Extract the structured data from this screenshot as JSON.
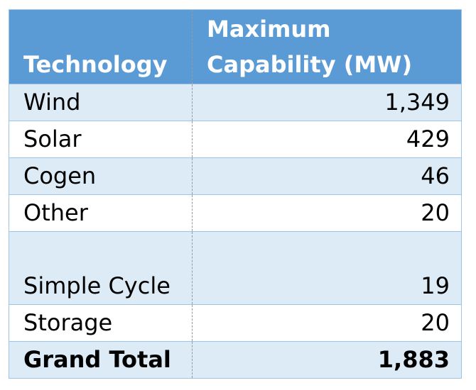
{
  "headers": {
    "technology": "Technology",
    "capability": "Maximum Capability (MW)"
  },
  "rows": [
    {
      "technology": "Wind",
      "capability": "1,349"
    },
    {
      "technology": "Solar",
      "capability": "429"
    },
    {
      "technology": "Cogen",
      "capability": "46"
    },
    {
      "technology": "Other",
      "capability": "20"
    },
    {
      "technology": "Simple Cycle",
      "capability": "19"
    },
    {
      "technology": "Storage",
      "capability": "20"
    }
  ],
  "total": {
    "label": "Grand Total",
    "value": "1,883"
  },
  "colors": {
    "header_bg": "#5b9bd5",
    "band_bg": "#ddebf7",
    "border": "#9dc3e6"
  }
}
